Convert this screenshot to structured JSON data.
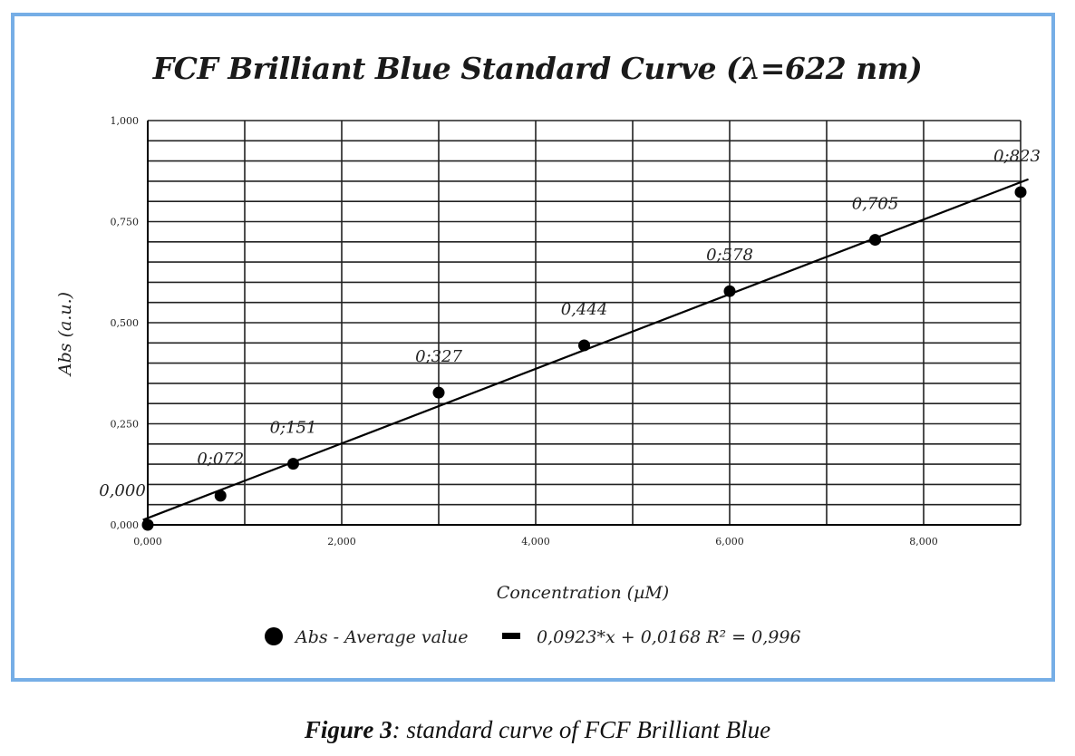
{
  "chart_data": {
    "type": "scatter",
    "title": "FCF Brilliant Blue Standard Curve (λ=622 nm)",
    "xlabel": "Concentration (µM)",
    "ylabel": "Abs (a.u.)",
    "xlim": [
      0,
      9
    ],
    "ylim": [
      0,
      1
    ],
    "x_ticks": [
      0,
      2,
      4,
      6,
      8
    ],
    "x_tick_labels": [
      "0,000",
      "2,000",
      "4,000",
      "6,000",
      "8,000"
    ],
    "y_ticks": [
      0,
      0.25,
      0.5,
      0.75,
      1.0
    ],
    "y_tick_labels": [
      "0,000",
      "0,250",
      "0,500",
      "0,750",
      "1,000"
    ],
    "grid": true,
    "legend_placement": "bottom",
    "series": [
      {
        "name": "Abs - Average value",
        "x": [
          0,
          0.75,
          1.5,
          3,
          4.5,
          6,
          7.5,
          9
        ],
        "y": [
          0.0,
          0.072,
          0.151,
          0.327,
          0.444,
          0.578,
          0.705,
          0.823
        ],
        "labels": [
          "0,000",
          "0;072",
          "0;151",
          "0;327",
          "0,444",
          "0;578",
          "0,705",
          "0;823"
        ]
      }
    ],
    "trendline": {
      "name": "0,0923*x + 0,0168 R² = 0,996",
      "slope": 0.0923,
      "intercept": 0.0168
    },
    "colors": {
      "points": "#000000",
      "line": "#000000",
      "grid": "#222222",
      "frame": "#76aee6"
    }
  },
  "caption": {
    "prefix": "Figure 3",
    "text": ": standard curve of FCF Brilliant Blue"
  }
}
